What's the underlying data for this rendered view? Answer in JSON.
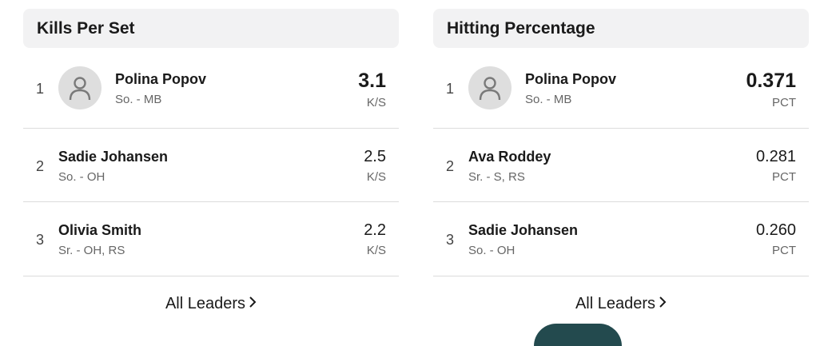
{
  "kills_panel": {
    "title": "Kills Per Set",
    "rows": [
      {
        "rank": "1",
        "name": "Polina Popov",
        "meta": "So. - MB",
        "value": "3.1",
        "unit": "K/S"
      },
      {
        "rank": "2",
        "name": "Sadie Johansen",
        "meta": "So. - OH",
        "value": "2.5",
        "unit": "K/S"
      },
      {
        "rank": "3",
        "name": "Olivia Smith",
        "meta": "Sr. - OH, RS",
        "value": "2.2",
        "unit": "K/S"
      }
    ],
    "all_leaders": "All Leaders"
  },
  "hitting_panel": {
    "title": "Hitting Percentage",
    "rows": [
      {
        "rank": "1",
        "name": "Polina Popov",
        "meta": "So. - MB",
        "value": "0.371",
        "unit": "PCT"
      },
      {
        "rank": "2",
        "name": "Ava Roddey",
        "meta": "Sr. - S, RS",
        "value": "0.281",
        "unit": "PCT"
      },
      {
        "rank": "3",
        "name": "Sadie Johansen",
        "meta": "So. - OH",
        "value": "0.260",
        "unit": "PCT"
      }
    ],
    "all_leaders": "All Leaders"
  },
  "icons": {
    "avatar": "person-icon",
    "chevron": "chevron-right-icon"
  }
}
